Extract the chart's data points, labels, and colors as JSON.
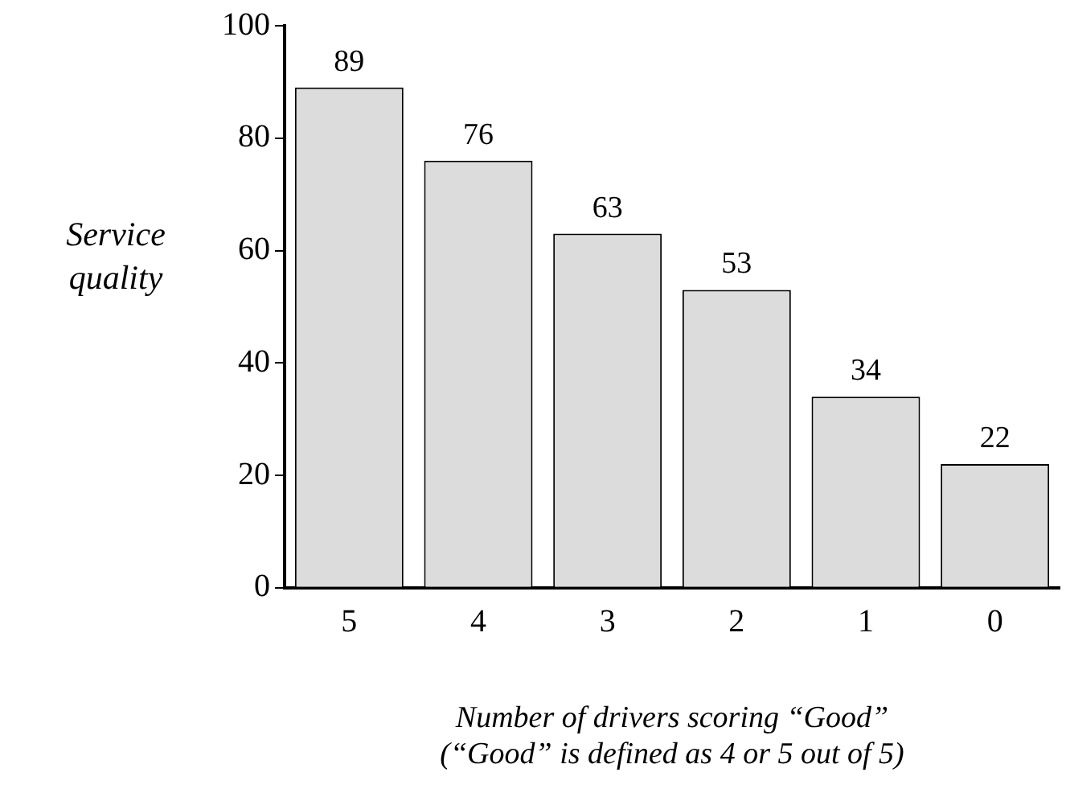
{
  "chart_data": {
    "type": "bar",
    "categories": [
      "5",
      "4",
      "3",
      "2",
      "1",
      "0"
    ],
    "values": [
      89,
      76,
      63,
      53,
      34,
      22
    ],
    "color": "#dcdcdc",
    "ylim": [
      0,
      100
    ],
    "yticks": [
      0,
      20,
      40,
      60,
      80,
      100
    ],
    "grid": false,
    "legend": false,
    "data_labels": true,
    "ylabel": "Service\nquality",
    "xlabel": "Number of drivers scoring “Good”\n(“Good” is defined as 4 or 5 out of 5)"
  }
}
